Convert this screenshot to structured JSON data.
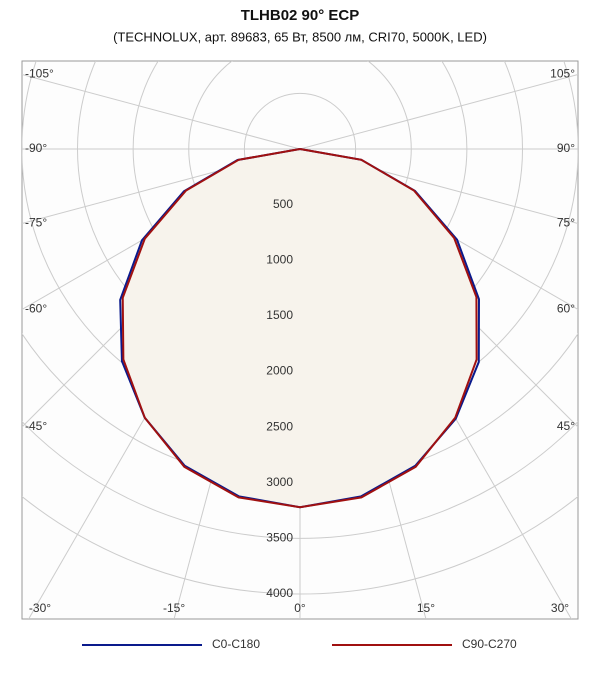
{
  "chart_data": {
    "type": "polar",
    "title": "TLHB02 90° ECP",
    "subtitle": "(TECHNOLUX, арт. 89683, 65 Вт, 8500 лм, CRI70, 5000K, LED)",
    "angles": [
      -90,
      -80,
      -70,
      -60,
      -50,
      -40,
      -30,
      -20,
      -10,
      0,
      10,
      20,
      30,
      40,
      50,
      60,
      70,
      80,
      90
    ],
    "series": [
      {
        "name": "C0-C180",
        "color": "#0a1a8c",
        "values": [
          0,
          570,
          1110,
          1640,
          2110,
          2490,
          2790,
          3030,
          3170,
          3220,
          3170,
          3030,
          2800,
          2500,
          2100,
          1630,
          1100,
          560,
          0
        ]
      },
      {
        "name": "C90-C270",
        "color": "#a01010",
        "values": [
          0,
          560,
          1090,
          1610,
          2080,
          2470,
          2790,
          3040,
          3180,
          3220,
          3180,
          3040,
          2790,
          2470,
          2070,
          1600,
          1090,
          560,
          0
        ]
      }
    ],
    "rlim": [
      0,
      4000
    ],
    "rticks": [
      500,
      1000,
      1500,
      2000,
      2500,
      3000,
      3500,
      4000
    ],
    "angle_ticks": [
      {
        "value": -105,
        "label": "-105°"
      },
      {
        "value": -90,
        "label": "-90°"
      },
      {
        "value": -75,
        "label": "-75°"
      },
      {
        "value": -60,
        "label": "-60°"
      },
      {
        "value": -45,
        "label": "-45°"
      },
      {
        "value": -30,
        "label": "-30°"
      },
      {
        "value": -15,
        "label": "-15°"
      },
      {
        "value": 0,
        "label": "0°"
      },
      {
        "value": 15,
        "label": "15°"
      },
      {
        "value": 30,
        "label": "30°"
      },
      {
        "value": 45,
        "label": "45°"
      },
      {
        "value": 60,
        "label": "60°"
      },
      {
        "value": 75,
        "label": "75°"
      },
      {
        "value": 90,
        "label": "90°"
      },
      {
        "value": 105,
        "label": "105°"
      }
    ],
    "grid": true,
    "fill_color": "#f7f3ec"
  }
}
